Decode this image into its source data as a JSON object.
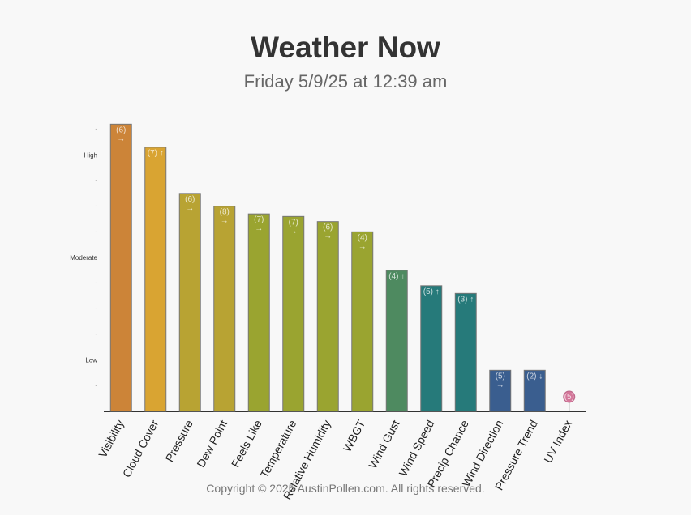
{
  "header": {
    "title": "Weather Now",
    "subtitle": "Friday 5/9/25 at 12:39 am"
  },
  "footer": {
    "copyright": "Copyright © 2025 AustinPollen.com.  All rights reserved."
  },
  "chart_data": {
    "type": "bar",
    "title": "Weather Now",
    "subtitle": "Friday 5/9/25 at 12:39 am",
    "ylim": [
      0,
      12
    ],
    "level_labels": [
      {
        "label": "Low",
        "value": 2
      },
      {
        "label": "Moderate",
        "value": 6
      },
      {
        "label": "High",
        "value": 10
      }
    ],
    "minor_ticks": [
      1,
      3,
      4,
      5,
      7,
      8,
      9,
      11
    ],
    "categories": [
      "Visibility",
      "Cloud Cover",
      "Pressure",
      "Dew Point",
      "Feels Like",
      "Temperature",
      "Relative Humidity",
      "WBGT",
      "Wind Gust",
      "Wind Speed",
      "Precip Chance",
      "Wind Direction",
      "Pressure Trend",
      "UV Index"
    ],
    "values": [
      11.2,
      10.3,
      8.5,
      8.0,
      7.7,
      7.6,
      7.4,
      7.0,
      5.5,
      4.9,
      4.6,
      1.6,
      1.6,
      0
    ],
    "bar_labels": [
      "(6)\n→",
      "(7) ↑",
      "(6)\n→",
      "(8)\n→",
      "(7)\n→",
      "(7)\n→",
      "(6)\n→",
      "(4)\n→",
      "(4) ↑",
      "(5) ↑",
      "(3) ↑",
      "(5)\n→",
      "(2) ↓",
      "(5)"
    ],
    "colors": [
      "#cc8438",
      "#d9a432",
      "#b8a333",
      "#b8a333",
      "#9aa430",
      "#9aa430",
      "#9aa430",
      "#9aa430",
      "#4e8a60",
      "#267a7a",
      "#267a7a",
      "#3a5e8f",
      "#3a5e8f",
      "#d4779a"
    ]
  }
}
